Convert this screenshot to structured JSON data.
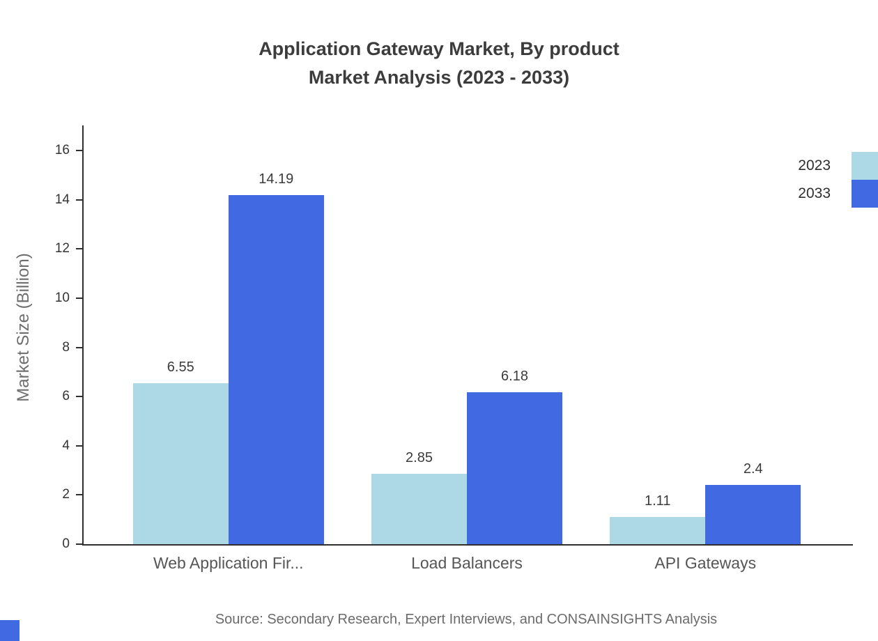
{
  "title": {
    "line1": "Application Gateway Market, By product",
    "line2": "Market Analysis (2023 - 2033)"
  },
  "source": "Source: Secondary Research, Expert Interviews, and CONSAINSIGHTS Analysis",
  "chart_data": {
    "type": "bar",
    "title": "Application Gateway Market, By product Market Analysis (2023 - 2033)",
    "categories": [
      "Web Application Fir...",
      "Load Balancers",
      "API Gateways"
    ],
    "series": [
      {
        "name": "2023",
        "color": "#add8e6",
        "values": [
          6.55,
          2.85,
          1.11
        ]
      },
      {
        "name": "2033",
        "color": "#4169e1",
        "values": [
          14.19,
          6.18,
          2.4
        ]
      }
    ],
    "xlabel": "",
    "ylabel": "Market Size (Billion)",
    "ylim": [
      0,
      16
    ],
    "yticks": [
      0,
      2,
      4,
      6,
      8,
      10,
      12,
      14,
      16
    ],
    "grid": false,
    "legend_position": "top-right"
  }
}
